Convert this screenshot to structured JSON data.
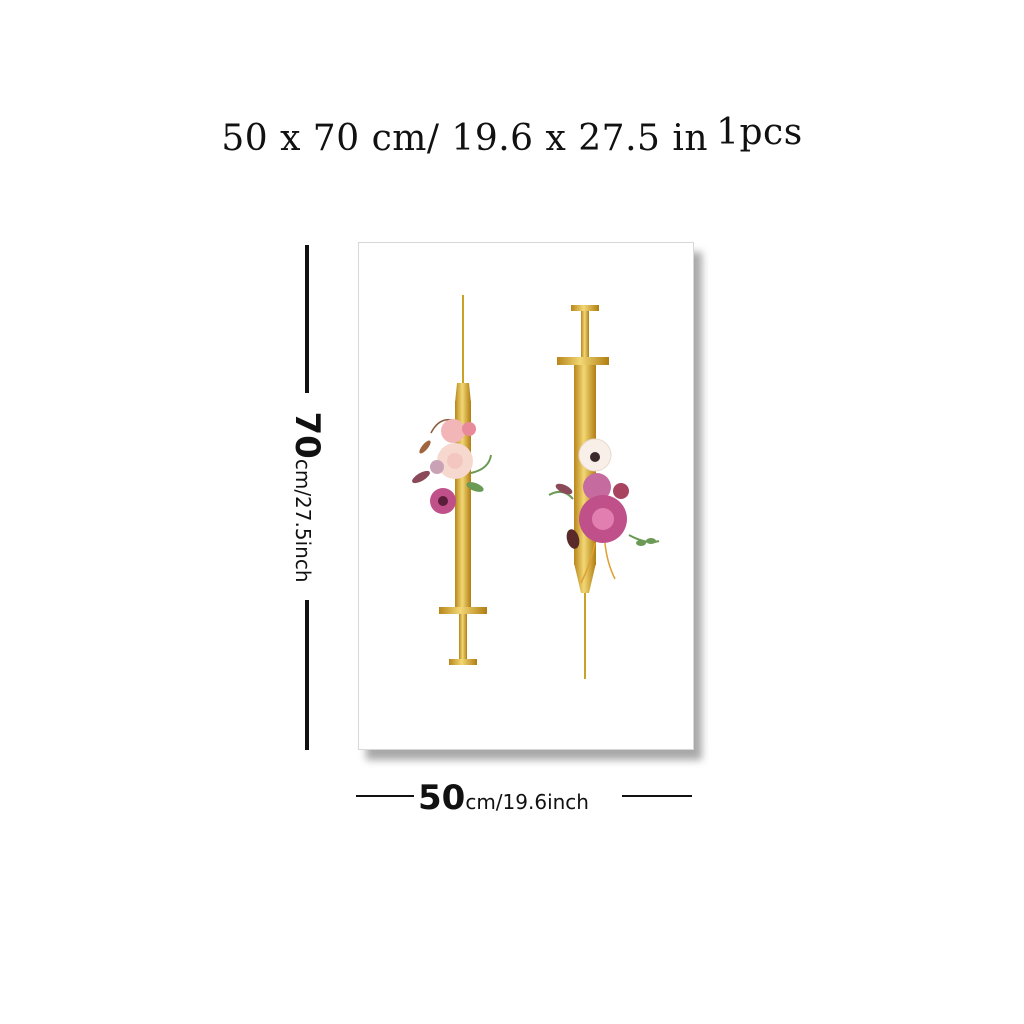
{
  "headline": {
    "size_text": "50 x 70 cm/ 19.6 x 27.5 in",
    "quantity": "1pcs"
  },
  "dimensions": {
    "height_value": "70",
    "height_unit": "cm/27.5inch",
    "width_value": "50",
    "width_unit": "cm/19.6inch"
  },
  "colors": {
    "gold": "#c9a227",
    "gold_light": "#e9cf6a",
    "rose_pink": "#c0508a",
    "blush": "#f3c7c0",
    "leaf_green": "#6b9a55",
    "outline": "#111111"
  },
  "artwork": {
    "subject_icons": [
      "syringe-icon",
      "flower-bouquet-icon"
    ]
  }
}
